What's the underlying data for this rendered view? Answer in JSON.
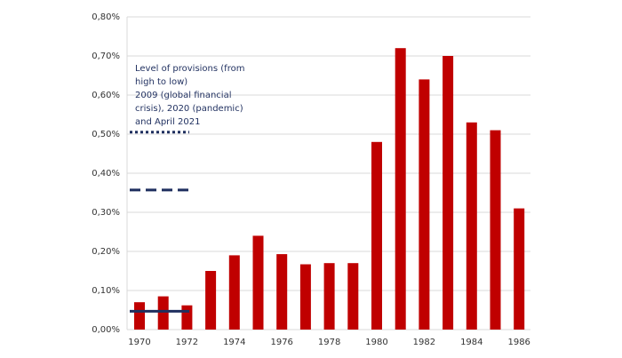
{
  "chart_data": {
    "type": "bar",
    "categories": [
      "1970",
      null,
      "1972",
      null,
      "1974",
      null,
      "1976",
      null,
      "1978",
      null,
      "1980",
      null,
      "1982",
      null,
      "1984",
      null,
      "1986"
    ],
    "values": [
      0.07,
      0.085,
      0.062,
      0.15,
      0.19,
      0.24,
      0.193,
      0.167,
      0.17,
      0.17,
      0.48,
      0.72,
      0.64,
      0.7,
      0.53,
      0.51,
      0.31
    ],
    "color": "#c00000",
    "ylim": [
      0,
      0.8
    ],
    "yticks": [
      {
        "value": 0,
        "label": "0,00%"
      },
      {
        "value": 0.1,
        "label": "0,10%"
      },
      {
        "value": 0.2,
        "label": "0,20%"
      },
      {
        "value": 0.3,
        "label": "0,30%"
      },
      {
        "value": 0.4,
        "label": "0,40%"
      },
      {
        "value": 0.5,
        "label": "0,50%"
      },
      {
        "value": 0.6,
        "label": "0,60%"
      },
      {
        "value": 0.7,
        "label": "0,70%"
      },
      {
        "value": 0.8,
        "label": "0,80%"
      }
    ],
    "grid": true,
    "annotation": [
      "Level of provisions (from",
      "high to low)",
      "2009 (global financial",
      "crisis), 2020 (pandemic)",
      "and April 2021"
    ],
    "reference_lines": [
      {
        "value": 0.505,
        "style": "dotted"
      },
      {
        "value": 0.357,
        "style": "dashed"
      },
      {
        "value": 0.047,
        "style": "solid"
      }
    ],
    "reference_color": "#1f2f5f"
  }
}
